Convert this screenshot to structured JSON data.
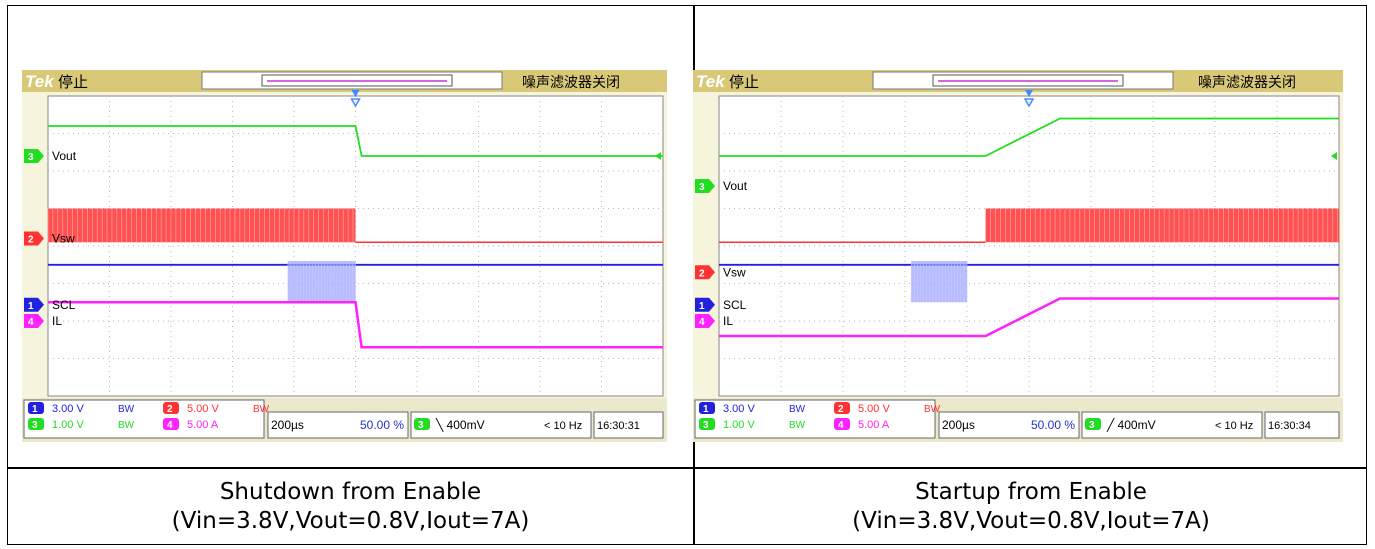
{
  "panels": [
    {
      "brand": "Tek",
      "state": "停止",
      "filter": "噪声滤波器关闭",
      "channels": [
        {
          "id": "3",
          "label": "Vout",
          "color": "#22dd22"
        },
        {
          "id": "2",
          "label": "Vsw",
          "color": "#ff3333"
        },
        {
          "id": "1",
          "label": "SCL",
          "color": "#2222dd"
        },
        {
          "id": "4",
          "label": "IL",
          "color": "#ff22ff"
        }
      ],
      "scales": [
        {
          "ch": "1",
          "value": "3.00 V",
          "bw": "BW",
          "color": "#2222dd"
        },
        {
          "ch": "2",
          "value": "5.00 V",
          "bw": "BW",
          "color": "#ff3333"
        },
        {
          "ch": "3",
          "value": "1.00 V",
          "bw": "BW",
          "color": "#22dd22"
        },
        {
          "ch": "4",
          "value": "5.00 A",
          "bw": "",
          "color": "#ff22ff"
        }
      ],
      "timebase": "200µs",
      "position": "50.00 %",
      "trigger_ch": "3",
      "trigger_level": "╲ 400mV",
      "frequency": "< 10 Hz",
      "time": "16:30:31",
      "caption_line1": "Shutdown from Enable",
      "caption_line2": "(Vin=3.8V,Vout=0.8V,Iout=7A)"
    },
    {
      "brand": "Tek",
      "state": "停止",
      "filter": "噪声滤波器关闭",
      "channels": [
        {
          "id": "3",
          "label": "Vout",
          "color": "#22dd22"
        },
        {
          "id": "2",
          "label": "Vsw",
          "color": "#ff3333"
        },
        {
          "id": "1",
          "label": "SCL",
          "color": "#2222dd"
        },
        {
          "id": "4",
          "label": "IL",
          "color": "#ff22ff"
        }
      ],
      "scales": [
        {
          "ch": "1",
          "value": "3.00 V",
          "bw": "BW",
          "color": "#2222dd"
        },
        {
          "ch": "2",
          "value": "5.00 V",
          "bw": "BW",
          "color": "#ff3333"
        },
        {
          "ch": "3",
          "value": "1.00 V",
          "bw": "BW",
          "color": "#22dd22"
        },
        {
          "ch": "4",
          "value": "5.00 A",
          "bw": "",
          "color": "#ff22ff"
        }
      ],
      "timebase": "200µs",
      "position": "50.00 %",
      "trigger_ch": "3",
      "trigger_level": "╱ 400mV",
      "frequency": "< 10 Hz",
      "time": "16:30:34",
      "caption_line1": "Startup from Enable",
      "caption_line2": "(Vin=3.8V,Vout=0.8V,Iout=7A)"
    }
  ],
  "chart_data": [
    {
      "type": "line",
      "title": "",
      "xlabel": "",
      "ylabel": "",
      "x_divisions": 10,
      "y_divisions": 8,
      "grid": true,
      "series": [
        {
          "name": "Vout",
          "color": "#22dd22",
          "x": [
            0,
            5,
            5.1,
            10
          ],
          "y": [
            3.2,
            3.2,
            2.4,
            2.4
          ]
        },
        {
          "name": "Vsw",
          "color": "#ff3333",
          "kind": "switching",
          "x": [
            0,
            5,
            5.05,
            10
          ],
          "y": [
            1.0,
            1.0,
            0.1,
            0.1
          ],
          "band_until": 5
        },
        {
          "name": "SCL",
          "color": "#2222dd",
          "x": [
            0,
            10
          ],
          "y": [
            -0.5,
            -0.5
          ],
          "burst_from": 3.9,
          "burst_to": 5.0
        },
        {
          "name": "IL",
          "color": "#ff22ff",
          "x": [
            0,
            5,
            5.1,
            10
          ],
          "y": [
            -1.5,
            -1.5,
            -2.7,
            -2.7
          ]
        }
      ]
    },
    {
      "type": "line",
      "title": "",
      "xlabel": "",
      "ylabel": "",
      "x_divisions": 10,
      "y_divisions": 8,
      "grid": true,
      "series": [
        {
          "name": "Vout",
          "color": "#22dd22",
          "x": [
            0,
            4.3,
            5.5,
            10
          ],
          "y": [
            2.4,
            2.4,
            3.4,
            3.4
          ]
        },
        {
          "name": "Vsw",
          "color": "#ff3333",
          "kind": "switching",
          "x": [
            0,
            4.3,
            10
          ],
          "y": [
            0.1,
            0.1,
            0.1
          ],
          "band_from": 4.3
        },
        {
          "name": "SCL",
          "color": "#2222dd",
          "x": [
            0,
            10
          ],
          "y": [
            -0.5,
            -0.5
          ],
          "burst_from": 3.1,
          "burst_to": 4.0
        },
        {
          "name": "IL",
          "color": "#ff22ff",
          "x": [
            0,
            4.3,
            5.5,
            10
          ],
          "y": [
            -2.4,
            -2.4,
            -1.4,
            -1.4
          ]
        }
      ]
    }
  ]
}
